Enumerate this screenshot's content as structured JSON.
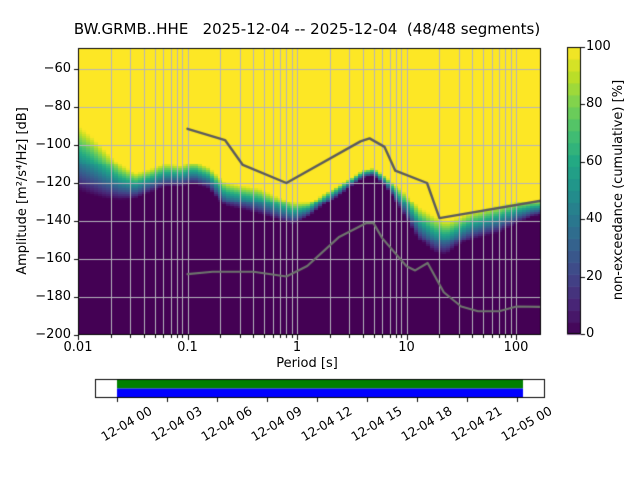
{
  "title": "BW.GRMB..HHE   2025-12-04 -- 2025-12-04  (48/48 segments)",
  "axes": {
    "x": {
      "label": "Period [s]",
      "scale": "log",
      "tick_values": [
        0.01,
        0.1,
        1,
        10,
        100
      ],
      "tick_labels": [
        "0.01",
        "0.1",
        "1",
        "10",
        "100"
      ],
      "range": [
        0.0105,
        169
      ]
    },
    "y": {
      "label": "Amplitude [m²/s⁴/Hz] [dB]",
      "tick_values": [
        -60,
        -80,
        -100,
        -120,
        -140,
        -160,
        -180,
        -200
      ],
      "tick_labels": [
        "−60",
        "−80",
        "−100",
        "−120",
        "−140",
        "−160",
        "−180",
        "−200"
      ],
      "range": [
        -200,
        -48.9
      ]
    }
  },
  "colorbar": {
    "label": "non-exceedance (cumulative) [%]",
    "tick_values": [
      100,
      80,
      60,
      40,
      20,
      0
    ],
    "tick_labels": [
      "100",
      "80",
      "60",
      "40",
      "20",
      "0"
    ],
    "range": [
      0,
      100
    ],
    "steps": 24,
    "colormap": "viridis"
  },
  "timeline": {
    "tick_labels": [
      "12-04 00",
      "12-04 03",
      "12-04 06",
      "12-04 09",
      "12-04 12",
      "12-04 15",
      "12-04 18",
      "12-04 21",
      "12-05 00"
    ],
    "coverage_color": "#008000",
    "processed_color": "#0000ff",
    "bar_start_frac": 0.0,
    "bar_end_frac": 1.015
  },
  "colors": {
    "grid": "#b4b4bc",
    "axis": "#000000",
    "noise_model_high": "#5b5b5e",
    "noise_model_low": "#6e746d",
    "viridis": [
      "#440154",
      "#482475",
      "#414487",
      "#355f8d",
      "#2a788e",
      "#21918c",
      "#22a884",
      "#44bf70",
      "#7ad151",
      "#bddf26",
      "#fde725"
    ]
  },
  "chart_data": {
    "type": "heatmap",
    "title": "BW.GRMB..HHE   2025-12-04 -- 2025-12-04  (48/48 segments)",
    "xlabel": "Period [s]",
    "ylabel": "Amplitude [m²/s⁴/Hz] [dB]",
    "x_scale": "log",
    "xlim": [
      0.0105,
      169
    ],
    "ylim": [
      -200,
      -48.9
    ],
    "grid": true,
    "colorbar_label": "non-exceedance (cumulative) [%]",
    "colorbar_range": [
      0,
      100
    ],
    "cumulative_band": {
      "description": "Cumulative PPSD: for each period the dB where non-exceedance reaches ~100% (top_db) and ~0% (bottom_db); viridis gradient spans between them, yellow above, dark purple below.",
      "periods": [
        0.01,
        0.013,
        0.018,
        0.024,
        0.033,
        0.045,
        0.062,
        0.085,
        0.115,
        0.157,
        0.22,
        0.3,
        0.45,
        0.68,
        0.93,
        1.3,
        1.8,
        2.35,
        3.2,
        4.0,
        5.0,
        6.4,
        7.5,
        9.2,
        13,
        18,
        23,
        30,
        38,
        50,
        70,
        105,
        140,
        170
      ],
      "top_db": [
        -90,
        -95,
        -103,
        -110,
        -115,
        -113,
        -110,
        -111,
        -109,
        -112,
        -119.5,
        -121,
        -122.5,
        -127,
        -130.5,
        -130.5,
        -125,
        -121.5,
        -117,
        -113.5,
        -112.5,
        -116.5,
        -120,
        -123.5,
        -133,
        -137.5,
        -140,
        -138,
        -135.5,
        -134,
        -132,
        -130,
        -129.5,
        -129.5
      ],
      "bottom_db": [
        -124,
        -126,
        -128,
        -128.5,
        -128,
        -125,
        -122,
        -122,
        -120.5,
        -123,
        -132.5,
        -134,
        -136.5,
        -139.5,
        -142,
        -137.5,
        -131.5,
        -127,
        -121.5,
        -117.5,
        -116.5,
        -122,
        -127,
        -136,
        -150,
        -157,
        -158,
        -153,
        -150,
        -148,
        -146,
        -141,
        -138,
        -137
      ]
    },
    "noise_models": {
      "high": {
        "name": "NHNM",
        "points": [
          [
            0.1,
            -91.5
          ],
          [
            0.22,
            -97.4
          ],
          [
            0.32,
            -110.5
          ],
          [
            0.8,
            -120.0
          ],
          [
            3.8,
            -98.1
          ],
          [
            4.6,
            -96.5
          ],
          [
            6.3,
            -101.0
          ],
          [
            7.9,
            -113.5
          ],
          [
            15.4,
            -120.0
          ],
          [
            20.0,
            -138.5
          ],
          [
            169,
            -129.3
          ]
        ]
      },
      "low": {
        "name": "NLNM",
        "points": [
          [
            0.1,
            -168.0
          ],
          [
            0.17,
            -166.7
          ],
          [
            0.4,
            -166.7
          ],
          [
            0.8,
            -169.2
          ],
          [
            1.24,
            -163.7
          ],
          [
            2.4,
            -148.6
          ],
          [
            4.3,
            -141.1
          ],
          [
            5.0,
            -141.1
          ],
          [
            6.0,
            -149.0
          ],
          [
            10.0,
            -163.8
          ],
          [
            12.0,
            -166.0
          ],
          [
            15.6,
            -162.1
          ],
          [
            21.9,
            -177.5
          ],
          [
            31.6,
            -185.0
          ],
          [
            45.0,
            -187.5
          ],
          [
            70.0,
            -187.5
          ],
          [
            101.0,
            -185.0
          ],
          [
            169,
            -185.2
          ]
        ]
      }
    }
  }
}
